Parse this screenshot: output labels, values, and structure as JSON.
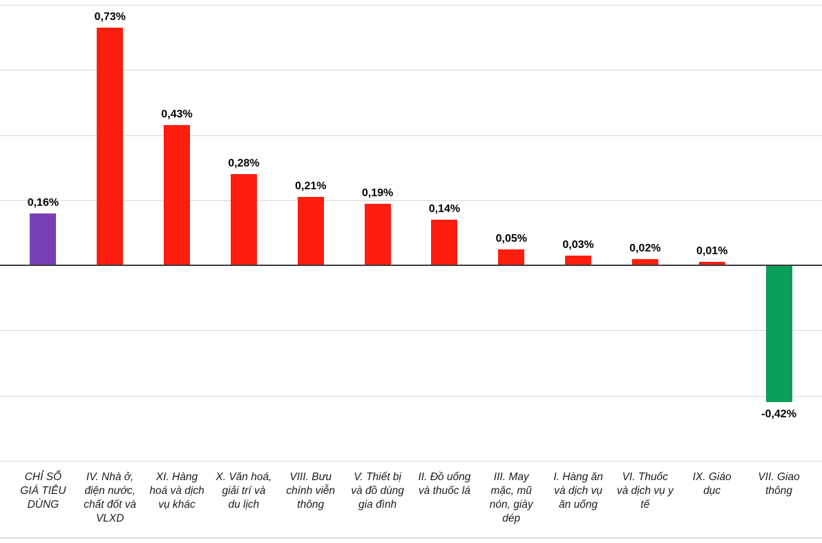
{
  "chart_data": {
    "type": "bar",
    "title": "",
    "xlabel": "",
    "ylabel": "",
    "legend": false,
    "grid": true,
    "grid_step": 0.2,
    "ylim": [
      -0.6,
      0.8
    ],
    "unit": "%",
    "decimal_separator": ",",
    "categories": [
      "CHỈ SỐ\nGIÁ TIÊU\nDÙNG",
      "IV. Nhà ở,\nđiện nước,\nchất đốt và\nVLXD",
      "XI. Hàng\nhoá và dịch\nvụ khác",
      "X. Văn hoá,\ngiải trí và\ndu lịch",
      "VIII. Bưu\nchính viễn\nthông",
      "V. Thiết bị\nvà đồ dùng\ngia đình",
      "II. Đồ uống\nvà thuốc lá",
      "III. May\nmặc, mũ\nnón, giày\ndép",
      "I. Hàng ăn\nvà dịch vụ\năn uống",
      "VI. Thuốc\nvà dịch vụ y\ntế",
      "IX. Giáo\ndục",
      "VII. Giao\nthông"
    ],
    "values": [
      0.16,
      0.73,
      0.43,
      0.28,
      0.21,
      0.19,
      0.14,
      0.05,
      0.03,
      0.02,
      0.01,
      -0.42
    ],
    "value_labels": [
      "0,16%",
      "0,73%",
      "0,43%",
      "0,28%",
      "0,21%",
      "0,19%",
      "0,14%",
      "0,05%",
      "0,03%",
      "0,02%",
      "0,01%",
      "-0,42%"
    ],
    "bar_colors": [
      "#7a3eb5",
      "#fe1e10",
      "#fe1e10",
      "#fe1e10",
      "#fe1e10",
      "#fe1e10",
      "#fe1e10",
      "#fe1e10",
      "#fe1e10",
      "#fe1e10",
      "#fe1e10",
      "#0a9e58"
    ],
    "colors": {
      "cpi_total": "#7a3eb5",
      "increase": "#fe1e10",
      "decrease": "#0a9e58",
      "gridline": "#d6d6d6",
      "zero_axis": "#3b3b3b",
      "value_text": "#000000",
      "category_text": "#1a1a1a"
    }
  }
}
